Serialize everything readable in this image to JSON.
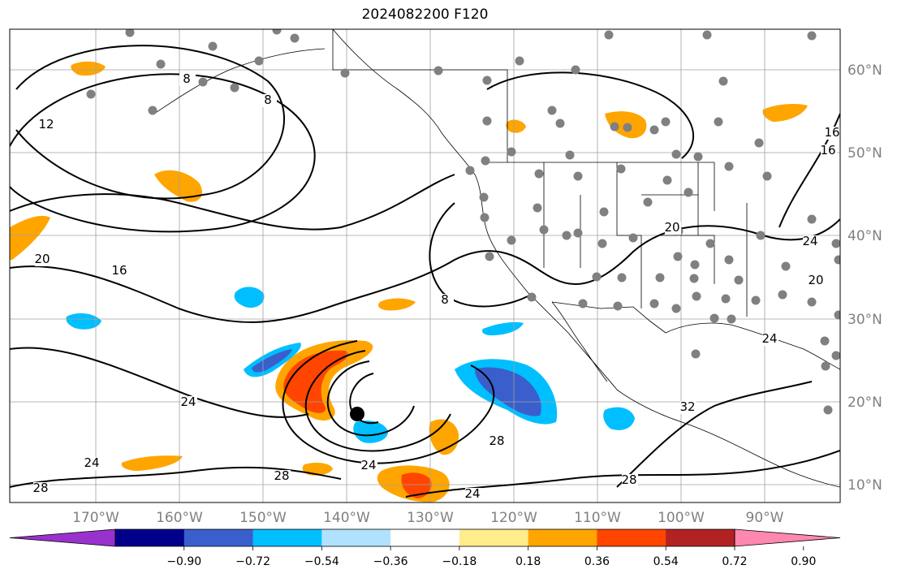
{
  "title": "2024082200 F120",
  "map": {
    "lon_ticks": [
      "170°W",
      "160°W",
      "150°W",
      "140°W",
      "130°W",
      "120°W",
      "110°W",
      "100°W",
      "90°W"
    ],
    "lat_ticks": [
      "60°N",
      "50°N",
      "40°N",
      "30°N",
      "20°N",
      "10°N"
    ],
    "contour_labels": [
      "8",
      "8",
      "8",
      "12",
      "16",
      "16",
      "16",
      "20",
      "20",
      "20",
      "24",
      "24",
      "24",
      "24",
      "24",
      "24",
      "28",
      "28",
      "28",
      "28",
      "32"
    ]
  },
  "colorbar": {
    "colors": [
      "#9932cc",
      "#00008b",
      "#3a5fcd",
      "#00bfff",
      "#b0e2ff",
      "#ffffff",
      "#ffec8b",
      "#ffa500",
      "#ff4500",
      "#b22222",
      "#ff88b0"
    ],
    "labels": [
      "−0.90",
      "−0.72",
      "−0.54",
      "−0.36",
      "−0.18",
      "0.18",
      "0.36",
      "0.54",
      "0.72",
      "0.90"
    ]
  },
  "colors": {
    "grid": "#a0a0a0",
    "contour": "#000000",
    "station": "#808080",
    "center": "#000000"
  }
}
